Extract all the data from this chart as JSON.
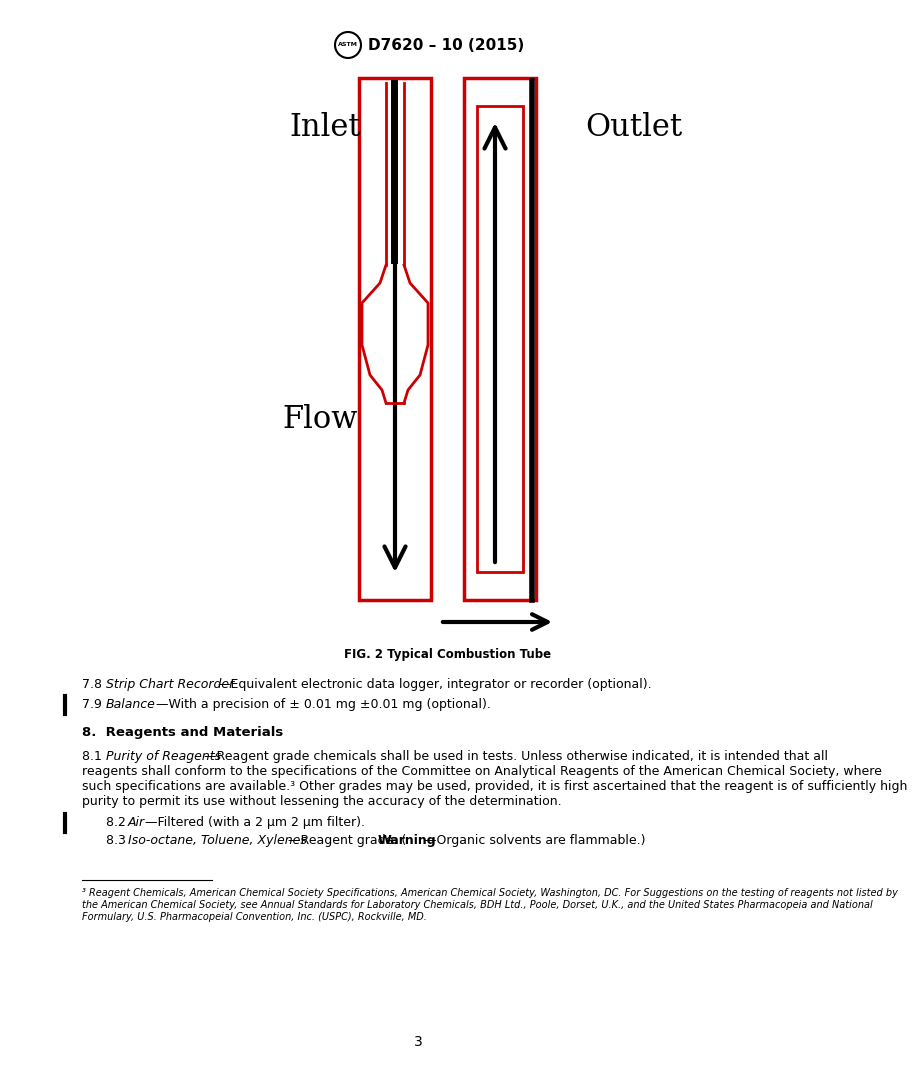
{
  "page_width": 8.16,
  "page_height": 10.56,
  "bg_color": "#ffffff",
  "header_text": "D7620 – 10 (2015)",
  "fig_caption": "FIG. 2 Typical Combustion Tube",
  "inlet_label": "Inlet",
  "outlet_label": "Outlet",
  "flow_label": "Flow",
  "red_color": "#cc0000",
  "black_color": "#000000",
  "page_number": "3",
  "footnote": "³ Reagent Chemicals, American Chemical Society Specifications, American Chemical Society, Washington, DC. For Suggestions on the testing of reagents not listed by the American Chemical Society, see Annual Standards for Laboratory Chemicals, BDH Ltd., Poole, Dorset, U.K., and the United States Pharmacopeia and National Formulary, U.S. Pharmacopeial Convention, Inc. (USPC), Rockville, MD."
}
